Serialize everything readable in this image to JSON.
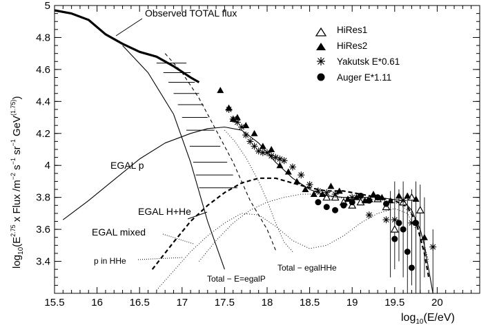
{
  "chart_data": {
    "type": "line",
    "title": "",
    "xlabel_main": "log",
    "xlabel_sub": "10",
    "xlabel_rest": "(E/eV)",
    "ylabel_main": "log",
    "ylabel_sub": "10",
    "ylabel_a": "(E",
    "ylabel_exp1": "2.75",
    "ylabel_b": " x Flux /m",
    "ylabel_exp2": "−2",
    "ylabel_c": " s",
    "ylabel_exp3": "−1",
    "ylabel_d": " sr",
    "ylabel_exp4": "−1",
    "ylabel_e": " GeV",
    "ylabel_exp5": "(1.75)",
    "ylabel_f": ")",
    "xlim": [
      15.5,
      20.5
    ],
    "ylim": [
      3.2,
      5.0
    ],
    "xticks": [
      "15.5",
      "16",
      "16.5",
      "17",
      "17.5",
      "18",
      "18.5",
      "19",
      "19.5",
      "20"
    ],
    "yticks": [
      "3.4",
      "3.6",
      "3.8",
      "4",
      "4.2",
      "4.4",
      "4.6",
      "4.8",
      "5"
    ],
    "legend": {
      "placement": "top-right",
      "entries": [
        {
          "label": "HiRes1",
          "marker": "open-triangle"
        },
        {
          "label": "HiRes2",
          "marker": "filled-triangle"
        },
        {
          "label": "Yakutsk E*0.61",
          "marker": "asterisk"
        },
        {
          "label": "Auger E*1.11",
          "marker": "filled-circle"
        }
      ]
    },
    "annotations": {
      "observed": "Observed TOTAL flux",
      "egal_p": "EGAL p",
      "egal_hhe": "EGAL H+He",
      "egal_mixed": "EGAL mixed",
      "p_in_hhe": "p in HHe",
      "total_egalp": "Total − E=egalP",
      "total_egalhhe": "Total − egalHHe"
    },
    "series": [
      {
        "name": "Observed TOTAL flux",
        "style": "thick-solid",
        "x": [
          15.5,
          15.7,
          15.9,
          16.1,
          16.3,
          16.5,
          16.7,
          16.9,
          17.1,
          17.2
        ],
        "y": [
          4.97,
          4.95,
          4.91,
          4.82,
          4.76,
          4.71,
          4.68,
          4.62,
          4.55,
          4.52
        ]
      },
      {
        "name": "EGAL p",
        "style": "solid",
        "x": [
          15.6,
          15.9,
          16.2,
          16.5,
          16.8,
          17.1,
          17.3,
          17.5,
          17.7,
          17.9,
          18.1,
          18.3,
          18.5,
          18.7,
          18.9,
          19.1,
          19.3,
          19.45,
          19.6,
          19.7,
          19.8,
          19.85,
          19.9,
          19.95
        ],
        "y": [
          3.66,
          3.78,
          3.91,
          4.04,
          4.14,
          4.2,
          4.23,
          4.24,
          4.22,
          4.14,
          4.02,
          3.92,
          3.85,
          3.81,
          3.8,
          3.8,
          3.8,
          3.79,
          3.78,
          3.72,
          3.6,
          3.5,
          3.35,
          3.2
        ]
      },
      {
        "name": "EGAL H+He",
        "style": "thick-dashed",
        "x": [
          16.65,
          16.9,
          17.1,
          17.3,
          17.5,
          17.7,
          17.9,
          18.1,
          18.3,
          18.5,
          18.7,
          18.9,
          19.1,
          19.3,
          19.5,
          19.65,
          19.75,
          19.85,
          19.9
        ],
        "y": [
          3.35,
          3.52,
          3.65,
          3.75,
          3.83,
          3.89,
          3.92,
          3.92,
          3.89,
          3.86,
          3.84,
          3.84,
          3.82,
          3.8,
          3.78,
          3.74,
          3.65,
          3.45,
          3.3
        ]
      },
      {
        "name": "Total − egalHHe",
        "style": "dashed",
        "x": [
          16.8,
          17.0,
          17.2,
          17.4,
          17.6,
          17.8,
          18.0,
          18.1
        ],
        "y": [
          4.7,
          4.58,
          4.42,
          4.22,
          4.02,
          3.78,
          3.6,
          3.47
        ]
      },
      {
        "name": "Total − E=egalP",
        "style": "solid",
        "x": [
          16.3,
          16.6,
          16.9,
          17.1,
          17.3,
          17.5
        ],
        "y": [
          4.75,
          4.58,
          4.32,
          4.02,
          3.65,
          3.35
        ]
      },
      {
        "name": "EGAL mixed",
        "style": "dotted",
        "x": [
          17.2,
          17.4,
          17.6,
          17.8,
          18.0,
          18.2,
          18.4,
          18.6,
          18.8,
          19.0,
          19.2,
          19.4,
          19.55,
          19.7,
          19.8,
          19.9
        ],
        "y": [
          3.4,
          3.53,
          3.64,
          3.72,
          3.77,
          3.8,
          3.82,
          3.82,
          3.8,
          3.79,
          3.79,
          3.78,
          3.76,
          3.7,
          3.6,
          3.4
        ]
      },
      {
        "name": "dotted-low",
        "style": "dotted",
        "x": [
          16.7,
          16.9,
          17.1,
          17.3,
          17.5,
          17.7,
          17.9,
          18.1,
          18.3,
          18.5,
          18.7,
          18.9,
          19.1,
          19.3,
          19.5,
          19.65,
          19.75
        ],
        "y": [
          3.22,
          3.34,
          3.46,
          3.56,
          3.64,
          3.7,
          3.69,
          3.62,
          3.53,
          3.48,
          3.5,
          3.56,
          3.64,
          3.7,
          3.73,
          3.7,
          3.6
        ]
      },
      {
        "name": "dotted-p-hhe",
        "style": "dotted",
        "x": [
          17.5,
          17.62,
          17.75,
          17.9,
          18.0,
          18.1,
          18.2,
          18.3
        ],
        "y": [
          4.22,
          4.15,
          4.05,
          3.9,
          3.78,
          3.64,
          3.52,
          3.46
        ]
      }
    ],
    "hires1": {
      "x": [
        18.7,
        18.8,
        18.9,
        19.0,
        19.1,
        19.2,
        19.3,
        19.4,
        19.5,
        19.6,
        19.7,
        19.8
      ],
      "y": [
        3.8,
        3.8,
        3.77,
        3.75,
        3.77,
        3.79,
        3.79,
        3.74,
        3.6,
        3.77,
        3.8,
        3.72
      ]
    },
    "hires2": {
      "x": [
        17.45,
        17.55,
        17.6,
        17.65,
        17.75,
        17.85,
        17.95,
        18.05,
        18.15,
        18.25,
        18.35,
        18.45,
        18.55,
        18.65,
        18.75,
        18.85,
        18.95,
        19.05,
        19.15,
        19.25,
        19.35,
        19.45,
        19.55,
        19.65,
        19.75,
        19.85
      ],
      "y": [
        4.47,
        4.36,
        4.29,
        4.3,
        4.25,
        4.2,
        4.12,
        4.1,
        4.0,
        3.96,
        3.9,
        3.85,
        3.82,
        3.82,
        3.87,
        3.84,
        3.79,
        3.8,
        3.78,
        3.82,
        3.8,
        3.78,
        3.81,
        3.81,
        3.79,
        3.55
      ]
    },
    "yakutsk": {
      "x": [
        17.55,
        17.6,
        17.65,
        17.7,
        17.75,
        17.8,
        17.85,
        17.9,
        17.95,
        18.0,
        18.05,
        18.1,
        18.15,
        18.2,
        18.3,
        18.4,
        18.5,
        18.6,
        18.7,
        18.8,
        19.0,
        19.2,
        19.4,
        19.5,
        19.6,
        19.7,
        19.95
      ],
      "y": [
        4.35,
        4.29,
        4.27,
        4.24,
        4.19,
        4.15,
        4.12,
        4.09,
        4.08,
        4.08,
        4.06,
        4.05,
        4.04,
        4.03,
        3.99,
        3.94,
        3.88,
        3.84,
        3.83,
        3.82,
        3.8,
        3.69,
        3.66,
        3.66,
        3.78,
        3.64,
        3.49
      ]
    },
    "auger": {
      "x": [
        18.6,
        18.7,
        18.8,
        18.9,
        19.0,
        19.1,
        19.2,
        19.3,
        19.4,
        19.5,
        19.55,
        19.6,
        19.65,
        19.7,
        19.75
      ],
      "y": [
        3.77,
        3.74,
        3.72,
        3.75,
        3.77,
        3.81,
        3.78,
        3.8,
        3.76,
        3.54,
        3.64,
        3.6,
        3.46,
        3.36,
        3.64
      ]
    },
    "error_bars": [
      {
        "x": 19.45,
        "lo": 3.3,
        "hi": 3.84
      },
      {
        "x": 19.5,
        "lo": 3.35,
        "hi": 3.9
      },
      {
        "x": 19.55,
        "lo": 3.4,
        "hi": 3.85
      },
      {
        "x": 19.6,
        "lo": 3.3,
        "hi": 3.9
      },
      {
        "x": 19.65,
        "lo": 3.2,
        "hi": 3.82
      },
      {
        "x": 19.7,
        "lo": 3.25,
        "hi": 3.85
      },
      {
        "x": 19.75,
        "lo": 3.2,
        "hi": 3.9
      },
      {
        "x": 19.8,
        "lo": 3.2,
        "hi": 3.88
      },
      {
        "x": 19.85,
        "lo": 3.3,
        "hi": 3.8
      },
      {
        "x": 19.95,
        "lo": 3.2,
        "hi": 3.6
      }
    ],
    "hatch_band": {
      "left_x": [
        16.7,
        16.78,
        16.84,
        16.9,
        16.95,
        17.0,
        17.05,
        17.09,
        17.13,
        17.16,
        17.2
      ],
      "right_x": [
        17.05,
        17.1,
        17.15,
        17.2,
        17.25,
        17.3,
        17.38,
        17.45,
        17.53,
        17.6,
        17.65
      ],
      "y": [
        4.64,
        4.58,
        4.52,
        4.45,
        4.38,
        4.3,
        4.22,
        4.12,
        4.02,
        3.94,
        3.86
      ]
    }
  }
}
